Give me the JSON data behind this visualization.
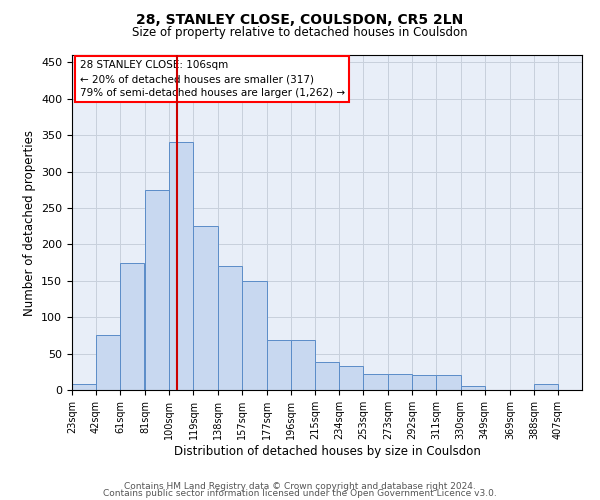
{
  "title1": "28, STANLEY CLOSE, COULSDON, CR5 2LN",
  "title2": "Size of property relative to detached houses in Coulsdon",
  "xlabel": "Distribution of detached houses by size in Coulsdon",
  "ylabel": "Number of detached properties",
  "bar_color": "#c8d8f0",
  "bar_edge_color": "#5b8cc8",
  "bar_left_edges": [
    23,
    42,
    61,
    81,
    100,
    119,
    138,
    157,
    177,
    196,
    215,
    234,
    253,
    273,
    292,
    311,
    330,
    349,
    369,
    388
  ],
  "bar_widths": [
    19,
    19,
    19,
    19,
    19,
    19,
    19,
    20,
    19,
    19,
    19,
    19,
    20,
    19,
    19,
    19,
    19,
    20,
    19,
    19
  ],
  "bar_heights": [
    8,
    75,
    175,
    275,
    340,
    225,
    170,
    150,
    68,
    68,
    38,
    33,
    22,
    22,
    20,
    20,
    5,
    0,
    0,
    8
  ],
  "x_tick_labels": [
    "23sqm",
    "42sqm",
    "61sqm",
    "81sqm",
    "100sqm",
    "119sqm",
    "138sqm",
    "157sqm",
    "177sqm",
    "196sqm",
    "215sqm",
    "234sqm",
    "253sqm",
    "273sqm",
    "292sqm",
    "311sqm",
    "330sqm",
    "349sqm",
    "369sqm",
    "388sqm",
    "407sqm"
  ],
  "x_tick_positions": [
    23,
    42,
    61,
    81,
    100,
    119,
    138,
    157,
    177,
    196,
    215,
    234,
    253,
    273,
    292,
    311,
    330,
    349,
    369,
    388,
    407
  ],
  "ylim": [
    0,
    460
  ],
  "xlim": [
    23,
    426
  ],
  "vline_x": 106,
  "vline_color": "#cc0000",
  "annotation_line1": "28 STANLEY CLOSE: 106sqm",
  "annotation_line2": "← 20% of detached houses are smaller (317)",
  "annotation_line3": "79% of semi-detached houses are larger (1,262) →",
  "footer_line1": "Contains HM Land Registry data © Crown copyright and database right 2024.",
  "footer_line2": "Contains public sector information licensed under the Open Government Licence v3.0.",
  "grid_color": "#c8d0dc",
  "background_color": "#e8eef8",
  "yticks": [
    0,
    50,
    100,
    150,
    200,
    250,
    300,
    350,
    400,
    450
  ]
}
